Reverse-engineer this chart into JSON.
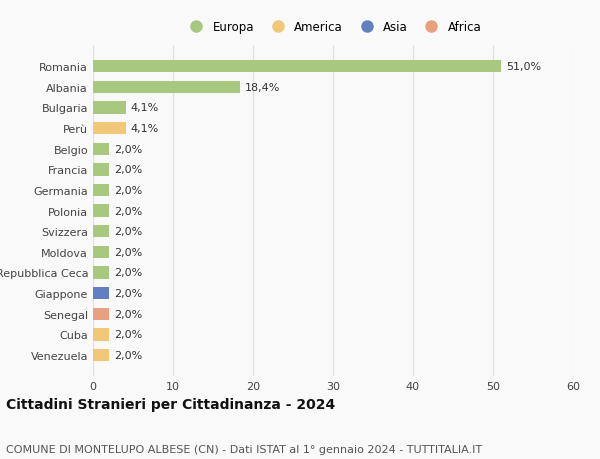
{
  "categories": [
    "Venezuela",
    "Cuba",
    "Senegal",
    "Giappone",
    "Repubblica Ceca",
    "Moldova",
    "Svizzera",
    "Polonia",
    "Germania",
    "Francia",
    "Belgio",
    "Perù",
    "Bulgaria",
    "Albania",
    "Romania"
  ],
  "values": [
    2.0,
    2.0,
    2.0,
    2.0,
    2.0,
    2.0,
    2.0,
    2.0,
    2.0,
    2.0,
    2.0,
    4.1,
    4.1,
    18.4,
    51.0
  ],
  "bar_colors": [
    "#f0c878",
    "#f0c878",
    "#e8a080",
    "#6080c0",
    "#a8c880",
    "#a8c880",
    "#a8c880",
    "#a8c880",
    "#a8c880",
    "#a8c880",
    "#a8c880",
    "#f0c878",
    "#a8c880",
    "#a8c880",
    "#a8c880"
  ],
  "labels": [
    "2,0%",
    "2,0%",
    "2,0%",
    "2,0%",
    "2,0%",
    "2,0%",
    "2,0%",
    "2,0%",
    "2,0%",
    "2,0%",
    "2,0%",
    "4,1%",
    "4,1%",
    "18,4%",
    "51,0%"
  ],
  "continent_colors": {
    "Europa": "#a8c880",
    "America": "#f0c878",
    "Asia": "#6080c0",
    "Africa": "#e8a080"
  },
  "legend_labels": [
    "Europa",
    "America",
    "Asia",
    "Africa"
  ],
  "title": "Cittadini Stranieri per Cittadinanza - 2024",
  "subtitle": "COMUNE DI MONTELUPO ALBESE (CN) - Dati ISTAT al 1° gennaio 2024 - TUTTITALIA.IT",
  "xlim": [
    0,
    60
  ],
  "xticks": [
    0,
    10,
    20,
    30,
    40,
    50,
    60
  ],
  "background_color": "#f9f9f9",
  "grid_color": "#dddddd",
  "bar_height": 0.6,
  "title_fontsize": 10,
  "subtitle_fontsize": 8,
  "label_fontsize": 8,
  "tick_fontsize": 8,
  "legend_fontsize": 8.5
}
